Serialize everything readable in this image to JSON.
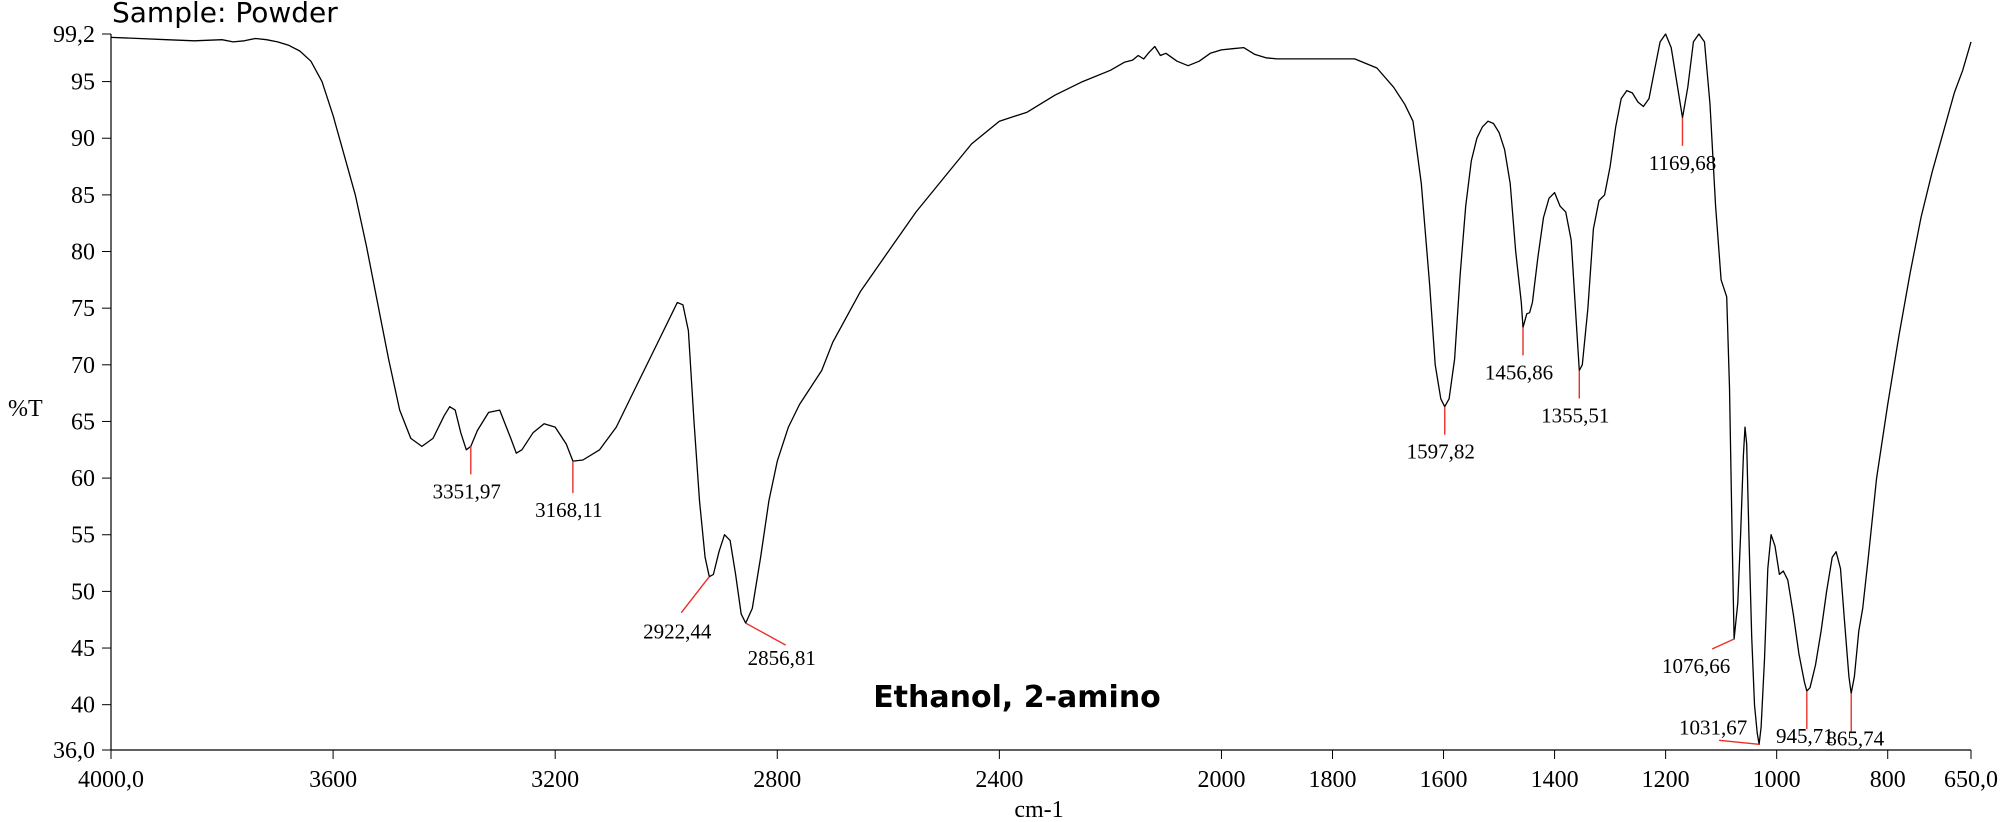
{
  "chart_data": {
    "type": "line",
    "title": "Sample: Powder",
    "annotation": "Ethanol, 2-amino",
    "xlabel": "cm-1",
    "ylabel": "%T",
    "xlim": [
      4000.0,
      650.0
    ],
    "ylim": [
      36.0,
      99.2
    ],
    "x_reversed": true,
    "grid": false,
    "legend": "none",
    "line_color": "#000000",
    "marker_color": "#e8302a",
    "x_ticks": [
      {
        "value": 4000,
        "label": "4000,0"
      },
      {
        "value": 3600,
        "label": "3600"
      },
      {
        "value": 3200,
        "label": "3200"
      },
      {
        "value": 2800,
        "label": "2800"
      },
      {
        "value": 2400,
        "label": "2400"
      },
      {
        "value": 2000,
        "label": "2000"
      },
      {
        "value": 1800,
        "label": "1800"
      },
      {
        "value": 1600,
        "label": "1600"
      },
      {
        "value": 1400,
        "label": "1400"
      },
      {
        "value": 1200,
        "label": "1200"
      },
      {
        "value": 1000,
        "label": "1000"
      },
      {
        "value": 800,
        "label": "800"
      },
      {
        "value": 650,
        "label": "650,0"
      }
    ],
    "y_ticks": [
      {
        "value": 99.2,
        "label": "99,2"
      },
      {
        "value": 95,
        "label": "95"
      },
      {
        "value": 90,
        "label": "90"
      },
      {
        "value": 85,
        "label": "85"
      },
      {
        "value": 80,
        "label": "80"
      },
      {
        "value": 75,
        "label": "75"
      },
      {
        "value": 70,
        "label": "70"
      },
      {
        "value": 65,
        "label": "65"
      },
      {
        "value": 60,
        "label": "60"
      },
      {
        "value": 55,
        "label": "55"
      },
      {
        "value": 50,
        "label": "50"
      },
      {
        "value": 45,
        "label": "45"
      },
      {
        "value": 40,
        "label": "40"
      },
      {
        "value": 36.0,
        "label": "36,0"
      }
    ],
    "series": [
      {
        "points": [
          [
            4000,
            98.9
          ],
          [
            3950,
            98.8
          ],
          [
            3900,
            98.7
          ],
          [
            3850,
            98.6
          ],
          [
            3800,
            98.7
          ],
          [
            3780,
            98.5
          ],
          [
            3760,
            98.6
          ],
          [
            3740,
            98.8
          ],
          [
            3720,
            98.7
          ],
          [
            3700,
            98.5
          ],
          [
            3680,
            98.2
          ],
          [
            3660,
            97.7
          ],
          [
            3640,
            96.8
          ],
          [
            3620,
            95.0
          ],
          [
            3600,
            92.0
          ],
          [
            3580,
            88.5
          ],
          [
            3560,
            85.0
          ],
          [
            3540,
            80.5
          ],
          [
            3520,
            75.5
          ],
          [
            3500,
            70.5
          ],
          [
            3480,
            66.0
          ],
          [
            3460,
            63.5
          ],
          [
            3440,
            62.8
          ],
          [
            3420,
            63.5
          ],
          [
            3400,
            65.5
          ],
          [
            3390,
            66.3
          ],
          [
            3380,
            66.0
          ],
          [
            3370,
            64.0
          ],
          [
            3360,
            62.5
          ],
          [
            3351.97,
            62.8
          ],
          [
            3340,
            64.2
          ],
          [
            3320,
            65.8
          ],
          [
            3300,
            66.0
          ],
          [
            3280,
            63.5
          ],
          [
            3270,
            62.2
          ],
          [
            3260,
            62.5
          ],
          [
            3240,
            64.0
          ],
          [
            3220,
            64.8
          ],
          [
            3200,
            64.5
          ],
          [
            3180,
            63.0
          ],
          [
            3168.11,
            61.5
          ],
          [
            3150,
            61.6
          ],
          [
            3120,
            62.5
          ],
          [
            3090,
            64.5
          ],
          [
            3060,
            67.5
          ],
          [
            3030,
            70.5
          ],
          [
            3010,
            72.5
          ],
          [
            2990,
            74.5
          ],
          [
            2980,
            75.5
          ],
          [
            2970,
            75.3
          ],
          [
            2960,
            73.0
          ],
          [
            2950,
            65.0
          ],
          [
            2940,
            58.0
          ],
          [
            2930,
            53.0
          ],
          [
            2922.44,
            51.3
          ],
          [
            2915,
            51.5
          ],
          [
            2905,
            53.5
          ],
          [
            2895,
            55.0
          ],
          [
            2885,
            54.5
          ],
          [
            2875,
            51.5
          ],
          [
            2865,
            48.0
          ],
          [
            2856.81,
            47.2
          ],
          [
            2845,
            48.5
          ],
          [
            2830,
            53.0
          ],
          [
            2815,
            58.0
          ],
          [
            2800,
            61.5
          ],
          [
            2780,
            64.5
          ],
          [
            2760,
            66.5
          ],
          [
            2740,
            68.0
          ],
          [
            2720,
            69.5
          ],
          [
            2700,
            72.0
          ],
          [
            2650,
            76.5
          ],
          [
            2600,
            80.0
          ],
          [
            2550,
            83.5
          ],
          [
            2500,
            86.5
          ],
          [
            2450,
            89.5
          ],
          [
            2400,
            91.5
          ],
          [
            2350,
            92.3
          ],
          [
            2300,
            93.8
          ],
          [
            2250,
            95.0
          ],
          [
            2200,
            96.0
          ],
          [
            2175,
            96.7
          ],
          [
            2160,
            96.9
          ],
          [
            2150,
            97.3
          ],
          [
            2140,
            97.0
          ],
          [
            2130,
            97.6
          ],
          [
            2120,
            98.1
          ],
          [
            2110,
            97.3
          ],
          [
            2100,
            97.5
          ],
          [
            2080,
            96.8
          ],
          [
            2060,
            96.4
          ],
          [
            2040,
            96.8
          ],
          [
            2020,
            97.5
          ],
          [
            2000,
            97.8
          ],
          [
            1980,
            97.9
          ],
          [
            1960,
            98.0
          ],
          [
            1940,
            97.4
          ],
          [
            1920,
            97.1
          ],
          [
            1900,
            97.0
          ],
          [
            1850,
            97.0
          ],
          [
            1800,
            97.0
          ],
          [
            1760,
            97.0
          ],
          [
            1720,
            96.2
          ],
          [
            1690,
            94.5
          ],
          [
            1670,
            93.0
          ],
          [
            1655,
            91.5
          ],
          [
            1640,
            86.0
          ],
          [
            1625,
            77.0
          ],
          [
            1615,
            70.0
          ],
          [
            1605,
            67.0
          ],
          [
            1597.82,
            66.3
          ],
          [
            1590,
            67.0
          ],
          [
            1580,
            70.5
          ],
          [
            1570,
            78.0
          ],
          [
            1560,
            84.0
          ],
          [
            1550,
            88.0
          ],
          [
            1540,
            90.0
          ],
          [
            1530,
            91.0
          ],
          [
            1520,
            91.5
          ],
          [
            1510,
            91.3
          ],
          [
            1500,
            90.5
          ],
          [
            1490,
            89.0
          ],
          [
            1480,
            86.0
          ],
          [
            1470,
            80.0
          ],
          [
            1460,
            75.5
          ],
          [
            1456.86,
            73.3
          ],
          [
            1450,
            74.5
          ],
          [
            1445,
            74.6
          ],
          [
            1440,
            75.5
          ],
          [
            1430,
            79.5
          ],
          [
            1420,
            83.0
          ],
          [
            1410,
            84.7
          ],
          [
            1400,
            85.2
          ],
          [
            1390,
            84.0
          ],
          [
            1380,
            83.5
          ],
          [
            1370,
            81.0
          ],
          [
            1360,
            73.0
          ],
          [
            1355.51,
            69.5
          ],
          [
            1350,
            70.0
          ],
          [
            1340,
            75.0
          ],
          [
            1330,
            82.0
          ],
          [
            1320,
            84.5
          ],
          [
            1310,
            85.0
          ],
          [
            1300,
            87.5
          ],
          [
            1290,
            91.0
          ],
          [
            1280,
            93.5
          ],
          [
            1270,
            94.2
          ],
          [
            1260,
            94.0
          ],
          [
            1250,
            93.2
          ],
          [
            1240,
            92.8
          ],
          [
            1230,
            93.5
          ],
          [
            1220,
            96.0
          ],
          [
            1210,
            98.5
          ],
          [
            1200,
            99.2
          ],
          [
            1190,
            98.0
          ],
          [
            1180,
            95.0
          ],
          [
            1169.68,
            91.8
          ],
          [
            1160,
            94.5
          ],
          [
            1150,
            98.5
          ],
          [
            1140,
            99.2
          ],
          [
            1130,
            98.5
          ],
          [
            1120,
            93.0
          ],
          [
            1110,
            84.0
          ],
          [
            1100,
            77.5
          ],
          [
            1090,
            76.0
          ],
          [
            1085,
            68.0
          ],
          [
            1080,
            54.0
          ],
          [
            1076.66,
            45.8
          ],
          [
            1070,
            49.0
          ],
          [
            1065,
            55.0
          ],
          [
            1060,
            62.0
          ],
          [
            1057,
            64.5
          ],
          [
            1054,
            63.0
          ],
          [
            1050,
            55.0
          ],
          [
            1045,
            46.0
          ],
          [
            1040,
            40.0
          ],
          [
            1035,
            37.5
          ],
          [
            1031.67,
            36.5
          ],
          [
            1028,
            38.0
          ],
          [
            1022,
            44.0
          ],
          [
            1016,
            52.0
          ],
          [
            1010,
            55.0
          ],
          [
            1003,
            54.0
          ],
          [
            995,
            51.5
          ],
          [
            988,
            51.8
          ],
          [
            980,
            51.0
          ],
          [
            970,
            48.0
          ],
          [
            960,
            44.5
          ],
          [
            950,
            42.0
          ],
          [
            945.71,
            41.2
          ],
          [
            940,
            41.5
          ],
          [
            930,
            43.5
          ],
          [
            920,
            46.5
          ],
          [
            910,
            50.0
          ],
          [
            900,
            53.0
          ],
          [
            893,
            53.5
          ],
          [
            885,
            52.0
          ],
          [
            878,
            47.5
          ],
          [
            870,
            42.5
          ],
          [
            865.74,
            41.0
          ],
          [
            860,
            42.5
          ],
          [
            852,
            46.5
          ],
          [
            845,
            48.5
          ],
          [
            835,
            53.0
          ],
          [
            820,
            60.0
          ],
          [
            800,
            66.5
          ],
          [
            780,
            72.5
          ],
          [
            760,
            78.0
          ],
          [
            740,
            83.0
          ],
          [
            720,
            87.0
          ],
          [
            700,
            90.5
          ],
          [
            680,
            94.0
          ],
          [
            665,
            96.0
          ],
          [
            650,
            98.5
          ]
        ]
      }
    ],
    "peaks": [
      {
        "label": "3351,97",
        "x": 3351.97,
        "y": 62.8
      },
      {
        "label": "3168,11",
        "x": 3168.11,
        "y": 61.5
      },
      {
        "label": "2922,44",
        "x": 2922.44,
        "y": 51.3
      },
      {
        "label": "2856,81",
        "x": 2856.81,
        "y": 47.2
      },
      {
        "label": "1597,82",
        "x": 1597.82,
        "y": 66.3
      },
      {
        "label": "1456,86",
        "x": 1456.86,
        "y": 73.3
      },
      {
        "label": "1355,51",
        "x": 1355.51,
        "y": 69.5
      },
      {
        "label": "1169,68",
        "x": 1169.68,
        "y": 91.8
      },
      {
        "label": "1076,66",
        "x": 1076.66,
        "y": 45.8
      },
      {
        "label": "1031,67",
        "x": 1031.67,
        "y": 36.5
      },
      {
        "label": "945,71",
        "x": 945.71,
        "y": 41.2
      },
      {
        "label": "865,74",
        "x": 865.74,
        "y": 41.0
      }
    ]
  }
}
